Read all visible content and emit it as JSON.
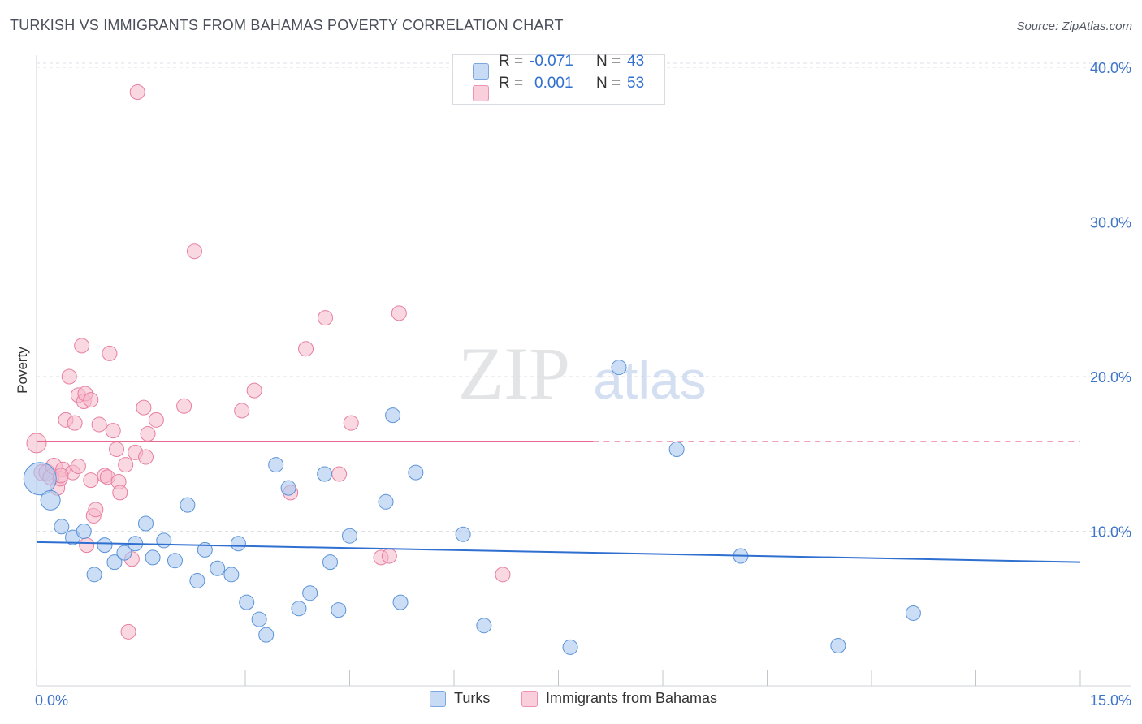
{
  "title": "TURKISH VS IMMIGRANTS FROM BAHAMAS POVERTY CORRELATION CHART",
  "source": "Source: ZipAtlas.com",
  "watermark": {
    "zip": "ZIP",
    "atlas": "atlas"
  },
  "legend_top": {
    "rows": [
      {
        "r_label": "R = ",
        "r_value": "-0.071",
        "n_label": "N = ",
        "n_value": "43",
        "color": "#a9c8f0"
      },
      {
        "r_label": "R = ",
        "r_value": "0.001",
        "n_label": "N = ",
        "n_value": "53",
        "color": "#f6b8cb"
      }
    ]
  },
  "legend_bottom": {
    "items": [
      {
        "label": "Turks",
        "color": "#a9c8f0"
      },
      {
        "label": "Immigrants from Bahamas",
        "color": "#f6b8cb"
      }
    ]
  },
  "colors": {
    "turks_fill": "#a9c8f0",
    "turks_stroke": "#5b93d8",
    "turks_line": "#2f6fd0",
    "bahamas_fill": "#f6b8cb",
    "bahamas_stroke": "#e77ea0",
    "bahamas_line": "#e8698f",
    "tick_text": "#3e74c9",
    "grid": "#dcdfe4"
  },
  "chart_data": {
    "type": "scatter",
    "title": "TURKISH VS IMMIGRANTS FROM BAHAMAS POVERTY CORRELATION CHART",
    "xlabel": "",
    "ylabel": "Poverty",
    "xlim": [
      0,
      15
    ],
    "ylim": [
      0,
      40
    ],
    "x_tick_labels": [
      "0.0%",
      "15.0%"
    ],
    "y_ticks": [
      10,
      20,
      30,
      40
    ],
    "y_tick_labels": [
      "10.0%",
      "20.0%",
      "30.0%",
      "40.0%"
    ],
    "grid": "horizontal dashed",
    "legend": "top-center",
    "series": [
      {
        "name": "Turks",
        "r": -0.071,
        "n": 43,
        "trend": {
          "x": [
            0,
            15
          ],
          "y": [
            9.3,
            8.0
          ]
        },
        "points": [
          [
            0.05,
            13.4,
            20
          ],
          [
            0.2,
            12.0,
            12
          ],
          [
            0.36,
            10.3,
            9
          ],
          [
            0.52,
            9.6,
            9
          ],
          [
            0.68,
            10.0,
            9
          ],
          [
            0.83,
            7.2,
            9
          ],
          [
            0.98,
            9.1,
            9
          ],
          [
            1.12,
            8.0,
            9
          ],
          [
            1.26,
            8.6,
            9
          ],
          [
            1.42,
            9.2,
            9
          ],
          [
            1.57,
            10.5,
            9
          ],
          [
            1.67,
            8.3,
            9
          ],
          [
            1.83,
            9.4,
            9
          ],
          [
            1.99,
            8.1,
            9
          ],
          [
            2.17,
            11.7,
            9
          ],
          [
            2.31,
            6.8,
            9
          ],
          [
            2.42,
            8.8,
            9
          ],
          [
            2.6,
            7.6,
            9
          ],
          [
            2.8,
            7.2,
            9
          ],
          [
            2.9,
            9.2,
            9
          ],
          [
            3.02,
            5.4,
            9
          ],
          [
            3.2,
            4.3,
            9
          ],
          [
            3.3,
            3.3,
            9
          ],
          [
            3.44,
            14.3,
            9
          ],
          [
            3.62,
            12.8,
            9
          ],
          [
            3.77,
            5.0,
            9
          ],
          [
            3.93,
            6.0,
            9
          ],
          [
            4.14,
            13.7,
            9
          ],
          [
            4.22,
            8.0,
            9
          ],
          [
            4.34,
            4.9,
            9
          ],
          [
            4.5,
            9.7,
            9
          ],
          [
            5.02,
            11.9,
            9
          ],
          [
            5.12,
            17.5,
            9
          ],
          [
            5.23,
            5.4,
            9
          ],
          [
            5.45,
            13.8,
            9
          ],
          [
            6.13,
            9.8,
            9
          ],
          [
            6.43,
            3.9,
            9
          ],
          [
            7.67,
            2.5,
            9
          ],
          [
            8.37,
            20.6,
            9
          ],
          [
            9.2,
            15.3,
            9
          ],
          [
            10.12,
            8.4,
            9
          ],
          [
            11.52,
            2.6,
            9
          ],
          [
            12.6,
            4.7,
            9
          ]
        ]
      },
      {
        "name": "Immigrants from Bahamas",
        "r": 0.001,
        "n": 53,
        "trend": {
          "x": [
            0,
            8.0
          ],
          "y": [
            15.8,
            15.8
          ],
          "dashed_extension": {
            "x": [
              8.0,
              15
            ],
            "y": [
              15.8,
              15.8
            ]
          }
        },
        "points": [
          [
            0.0,
            15.7,
            12
          ],
          [
            0.08,
            13.8,
            10
          ],
          [
            0.15,
            13.8,
            10
          ],
          [
            0.21,
            13.5,
            10
          ],
          [
            0.25,
            14.2,
            10
          ],
          [
            0.3,
            12.8,
            9
          ],
          [
            0.34,
            13.4,
            9
          ],
          [
            0.38,
            14.0,
            9
          ],
          [
            0.42,
            17.2,
            9
          ],
          [
            0.47,
            20.0,
            9
          ],
          [
            0.52,
            13.8,
            9
          ],
          [
            0.55,
            17.0,
            9
          ],
          [
            0.6,
            18.8,
            9
          ],
          [
            0.65,
            22.0,
            9
          ],
          [
            0.68,
            18.4,
            9
          ],
          [
            0.7,
            18.9,
            9
          ],
          [
            0.72,
            9.1,
            9
          ],
          [
            0.78,
            18.5,
            9
          ],
          [
            0.82,
            11.0,
            9
          ],
          [
            0.85,
            11.4,
            9
          ],
          [
            0.9,
            16.9,
            9
          ],
          [
            0.98,
            13.6,
            9
          ],
          [
            1.02,
            13.5,
            9
          ],
          [
            1.05,
            21.5,
            9
          ],
          [
            1.1,
            16.5,
            9
          ],
          [
            1.15,
            15.3,
            9
          ],
          [
            1.18,
            13.2,
            9
          ],
          [
            1.2,
            12.5,
            9
          ],
          [
            1.28,
            14.3,
            9
          ],
          [
            1.32,
            3.5,
            9
          ],
          [
            1.37,
            8.2,
            9
          ],
          [
            1.42,
            15.1,
            9
          ],
          [
            1.54,
            18.0,
            9
          ],
          [
            1.57,
            14.8,
            9
          ],
          [
            1.6,
            16.3,
            9
          ],
          [
            1.72,
            17.2,
            9
          ],
          [
            2.12,
            18.1,
            9
          ],
          [
            2.27,
            28.1,
            9
          ],
          [
            1.45,
            38.4,
            9
          ],
          [
            2.95,
            17.8,
            9
          ],
          [
            3.13,
            19.1,
            9
          ],
          [
            3.65,
            12.5,
            9
          ],
          [
            3.87,
            21.8,
            9
          ],
          [
            4.15,
            23.8,
            9
          ],
          [
            4.35,
            13.7,
            9
          ],
          [
            4.52,
            17.0,
            9
          ],
          [
            4.95,
            8.3,
            9
          ],
          [
            5.07,
            8.4,
            9
          ],
          [
            5.21,
            24.1,
            9
          ],
          [
            6.7,
            7.2,
            9
          ],
          [
            0.6,
            14.2,
            9
          ],
          [
            0.35,
            13.6,
            9
          ],
          [
            0.78,
            13.3,
            9
          ]
        ]
      }
    ]
  }
}
